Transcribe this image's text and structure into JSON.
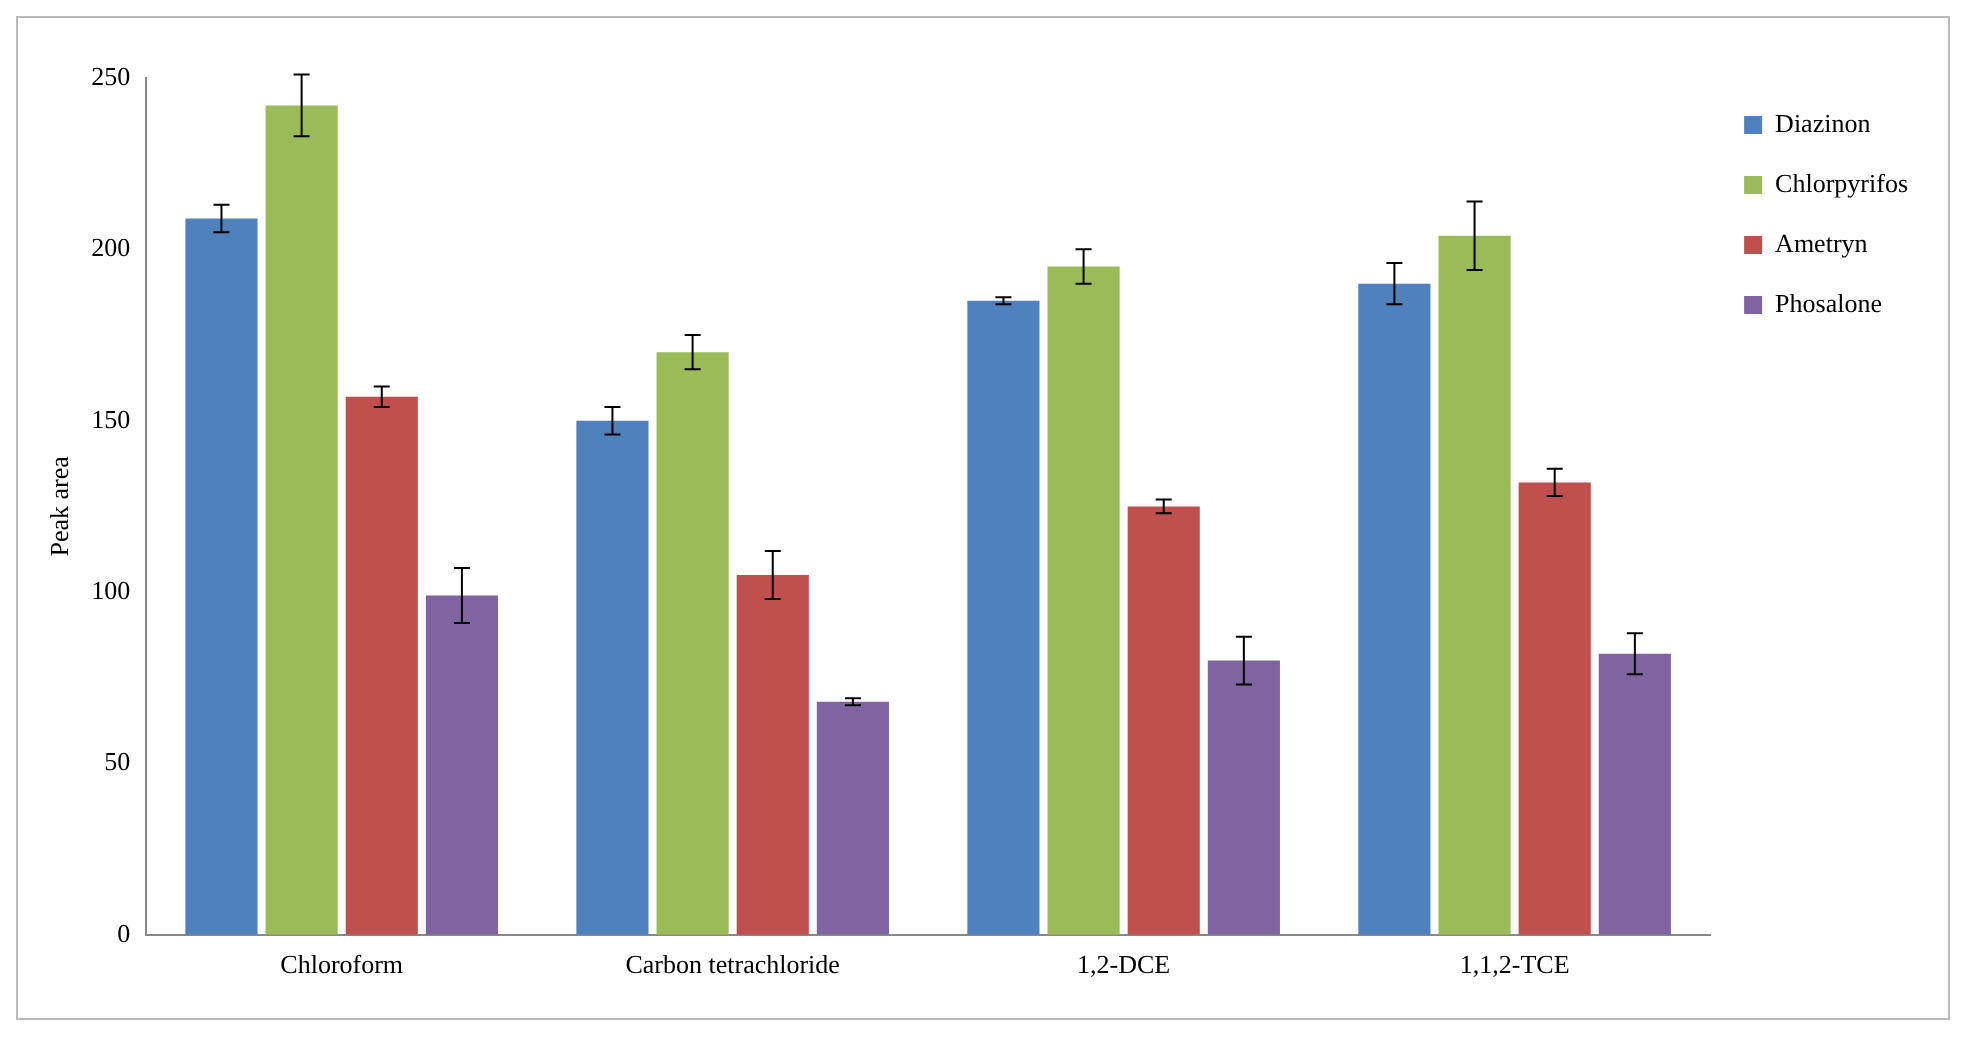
{
  "chart_data": {
    "type": "bar",
    "ylabel": "Peak area",
    "categories": [
      "Chloroform",
      "Carbon tetrachloride",
      "1,2-DCE",
      "1,1,2-TCE"
    ],
    "series": [
      {
        "name": "Diazinon",
        "color": "#4f81bd",
        "values": [
          209,
          150,
          185,
          190
        ],
        "errors": [
          4,
          4,
          1,
          6
        ]
      },
      {
        "name": "Chlorpyrifos",
        "color": "#9bbb59",
        "values": [
          242,
          170,
          195,
          204
        ],
        "errors": [
          9,
          5,
          5,
          10
        ]
      },
      {
        "name": "Ametryn",
        "color": "#c0504d",
        "values": [
          157,
          105,
          125,
          132
        ],
        "errors": [
          3,
          7,
          2,
          4
        ]
      },
      {
        "name": "Phosalone",
        "color": "#8064a2",
        "values": [
          99,
          68,
          80,
          82
        ],
        "errors": [
          8,
          1,
          7,
          6
        ]
      }
    ],
    "ylim": [
      0,
      250
    ],
    "yticks": [
      0,
      50,
      100,
      150,
      200,
      250
    ],
    "grid": false,
    "legend": "top right"
  }
}
